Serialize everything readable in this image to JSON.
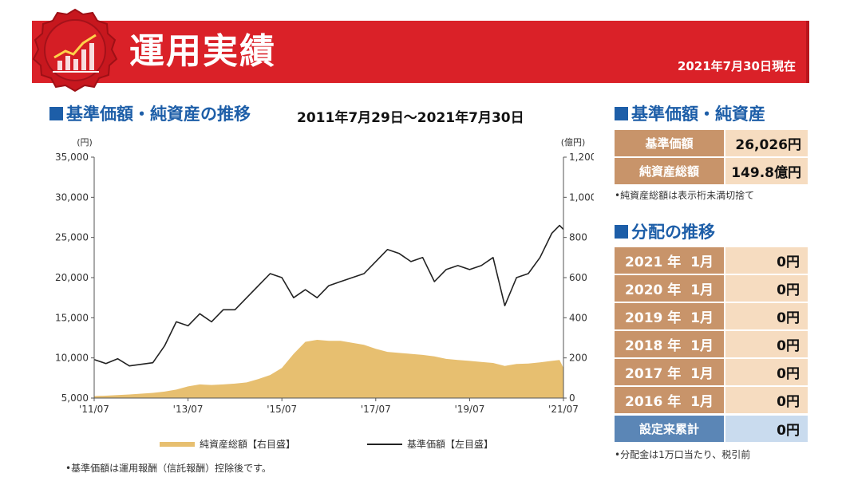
{
  "header": {
    "title": "運用実績",
    "as_of": "2021年7月30日現在"
  },
  "chart_section": {
    "heading": "基準価額・純資産の推移",
    "period": "2011年7月29日～2021年7月30日"
  },
  "summary_section": {
    "heading": "基準価額・純資産",
    "rows": [
      {
        "label": "基準価額",
        "value": "26,026円"
      },
      {
        "label": "純資産総額",
        "value": "149.8億円"
      }
    ],
    "note": "•純資産総額は表示桁未満切捨て"
  },
  "distribution_section": {
    "heading": "分配の推移",
    "rows": [
      {
        "label": "2021 年  1月",
        "value": "0円"
      },
      {
        "label": "2020 年  1月",
        "value": "0円"
      },
      {
        "label": "2019 年  1月",
        "value": "0円"
      },
      {
        "label": "2018 年  1月",
        "value": "0円"
      },
      {
        "label": "2017 年  1月",
        "value": "0円"
      },
      {
        "label": "2016 年  1月",
        "value": "0円"
      }
    ],
    "total": {
      "label": "設定来累計",
      "value": "0円"
    },
    "note": "•分配金は1万口当たり、税引前"
  },
  "chart_note": "•基準価額は運用報酬（信託報酬）控除後です。",
  "colors": {
    "header_red": "#da2128",
    "heading_blue": "#1d5ea8",
    "nav_line": "#222222",
    "asset_area": "#e7bf70",
    "table_key": "#c8946a",
    "table_value": "#f6dcc0",
    "total_key": "#5b86b6",
    "total_value": "#c9dbee"
  },
  "chart_data": {
    "type": "line",
    "title": "",
    "y_left": {
      "label": "(円)",
      "min": 5000,
      "max": 35000,
      "ticks": [
        "5,000",
        "10,000",
        "15,000",
        "20,000",
        "25,000",
        "30,000",
        "35,000"
      ]
    },
    "y_right": {
      "label": "(億円)",
      "min": 0,
      "max": 1200,
      "ticks": [
        "0",
        "200",
        "400",
        "600",
        "800",
        "1,000",
        "1,200"
      ]
    },
    "x_ticks": [
      "'11/07",
      "'13/07",
      "'15/07",
      "'17/07",
      "'19/07",
      "'21/07"
    ],
    "x_range": [
      "2011-07",
      "2021-07"
    ],
    "grid": false,
    "legend": "bottom",
    "series": [
      {
        "name": "純資産総額【右目盛】",
        "kind": "area",
        "axis": "right",
        "x": [
          "2011-07",
          "2011-10",
          "2012-01",
          "2012-04",
          "2012-07",
          "2012-10",
          "2013-01",
          "2013-04",
          "2013-07",
          "2013-10",
          "2014-01",
          "2014-04",
          "2014-07",
          "2014-10",
          "2015-01",
          "2015-04",
          "2015-07",
          "2015-10",
          "2016-01",
          "2016-04",
          "2016-07",
          "2016-10",
          "2017-01",
          "2017-04",
          "2017-07",
          "2017-10",
          "2018-01",
          "2018-04",
          "2018-07",
          "2018-10",
          "2019-01",
          "2019-04",
          "2019-07",
          "2019-10",
          "2020-01",
          "2020-04",
          "2020-07",
          "2020-10",
          "2021-01",
          "2021-04",
          "2021-06",
          "2021-07"
        ],
        "y": [
          10,
          12,
          15,
          18,
          22,
          26,
          32,
          42,
          58,
          68,
          65,
          68,
          72,
          78,
          95,
          115,
          150,
          220,
          280,
          290,
          285,
          285,
          275,
          265,
          245,
          230,
          225,
          220,
          215,
          208,
          195,
          190,
          185,
          180,
          175,
          160,
          170,
          172,
          178,
          185,
          190,
          150
        ]
      },
      {
        "name": "基準価額【左目盛】",
        "kind": "line",
        "axis": "left",
        "x": [
          "2011-07",
          "2011-10",
          "2012-01",
          "2012-04",
          "2012-07",
          "2012-10",
          "2013-01",
          "2013-04",
          "2013-07",
          "2013-10",
          "2014-01",
          "2014-04",
          "2014-07",
          "2014-10",
          "2015-01",
          "2015-04",
          "2015-07",
          "2015-10",
          "2016-01",
          "2016-04",
          "2016-07",
          "2016-10",
          "2017-01",
          "2017-04",
          "2017-07",
          "2017-10",
          "2018-01",
          "2018-04",
          "2018-07",
          "2018-10",
          "2019-01",
          "2019-04",
          "2019-07",
          "2019-10",
          "2020-01",
          "2020-04",
          "2020-07",
          "2020-10",
          "2021-01",
          "2021-04",
          "2021-06",
          "2021-07"
        ],
        "y": [
          9800,
          9300,
          9900,
          9000,
          9200,
          9400,
          11500,
          14500,
          14000,
          15500,
          14500,
          16000,
          16000,
          17500,
          19000,
          20500,
          20000,
          17500,
          18500,
          17500,
          19000,
          19500,
          20000,
          20500,
          22000,
          23500,
          23000,
          22000,
          22500,
          19500,
          21000,
          21500,
          21000,
          21500,
          22500,
          16500,
          20000,
          20500,
          22500,
          25500,
          26500,
          26000
        ]
      }
    ]
  }
}
